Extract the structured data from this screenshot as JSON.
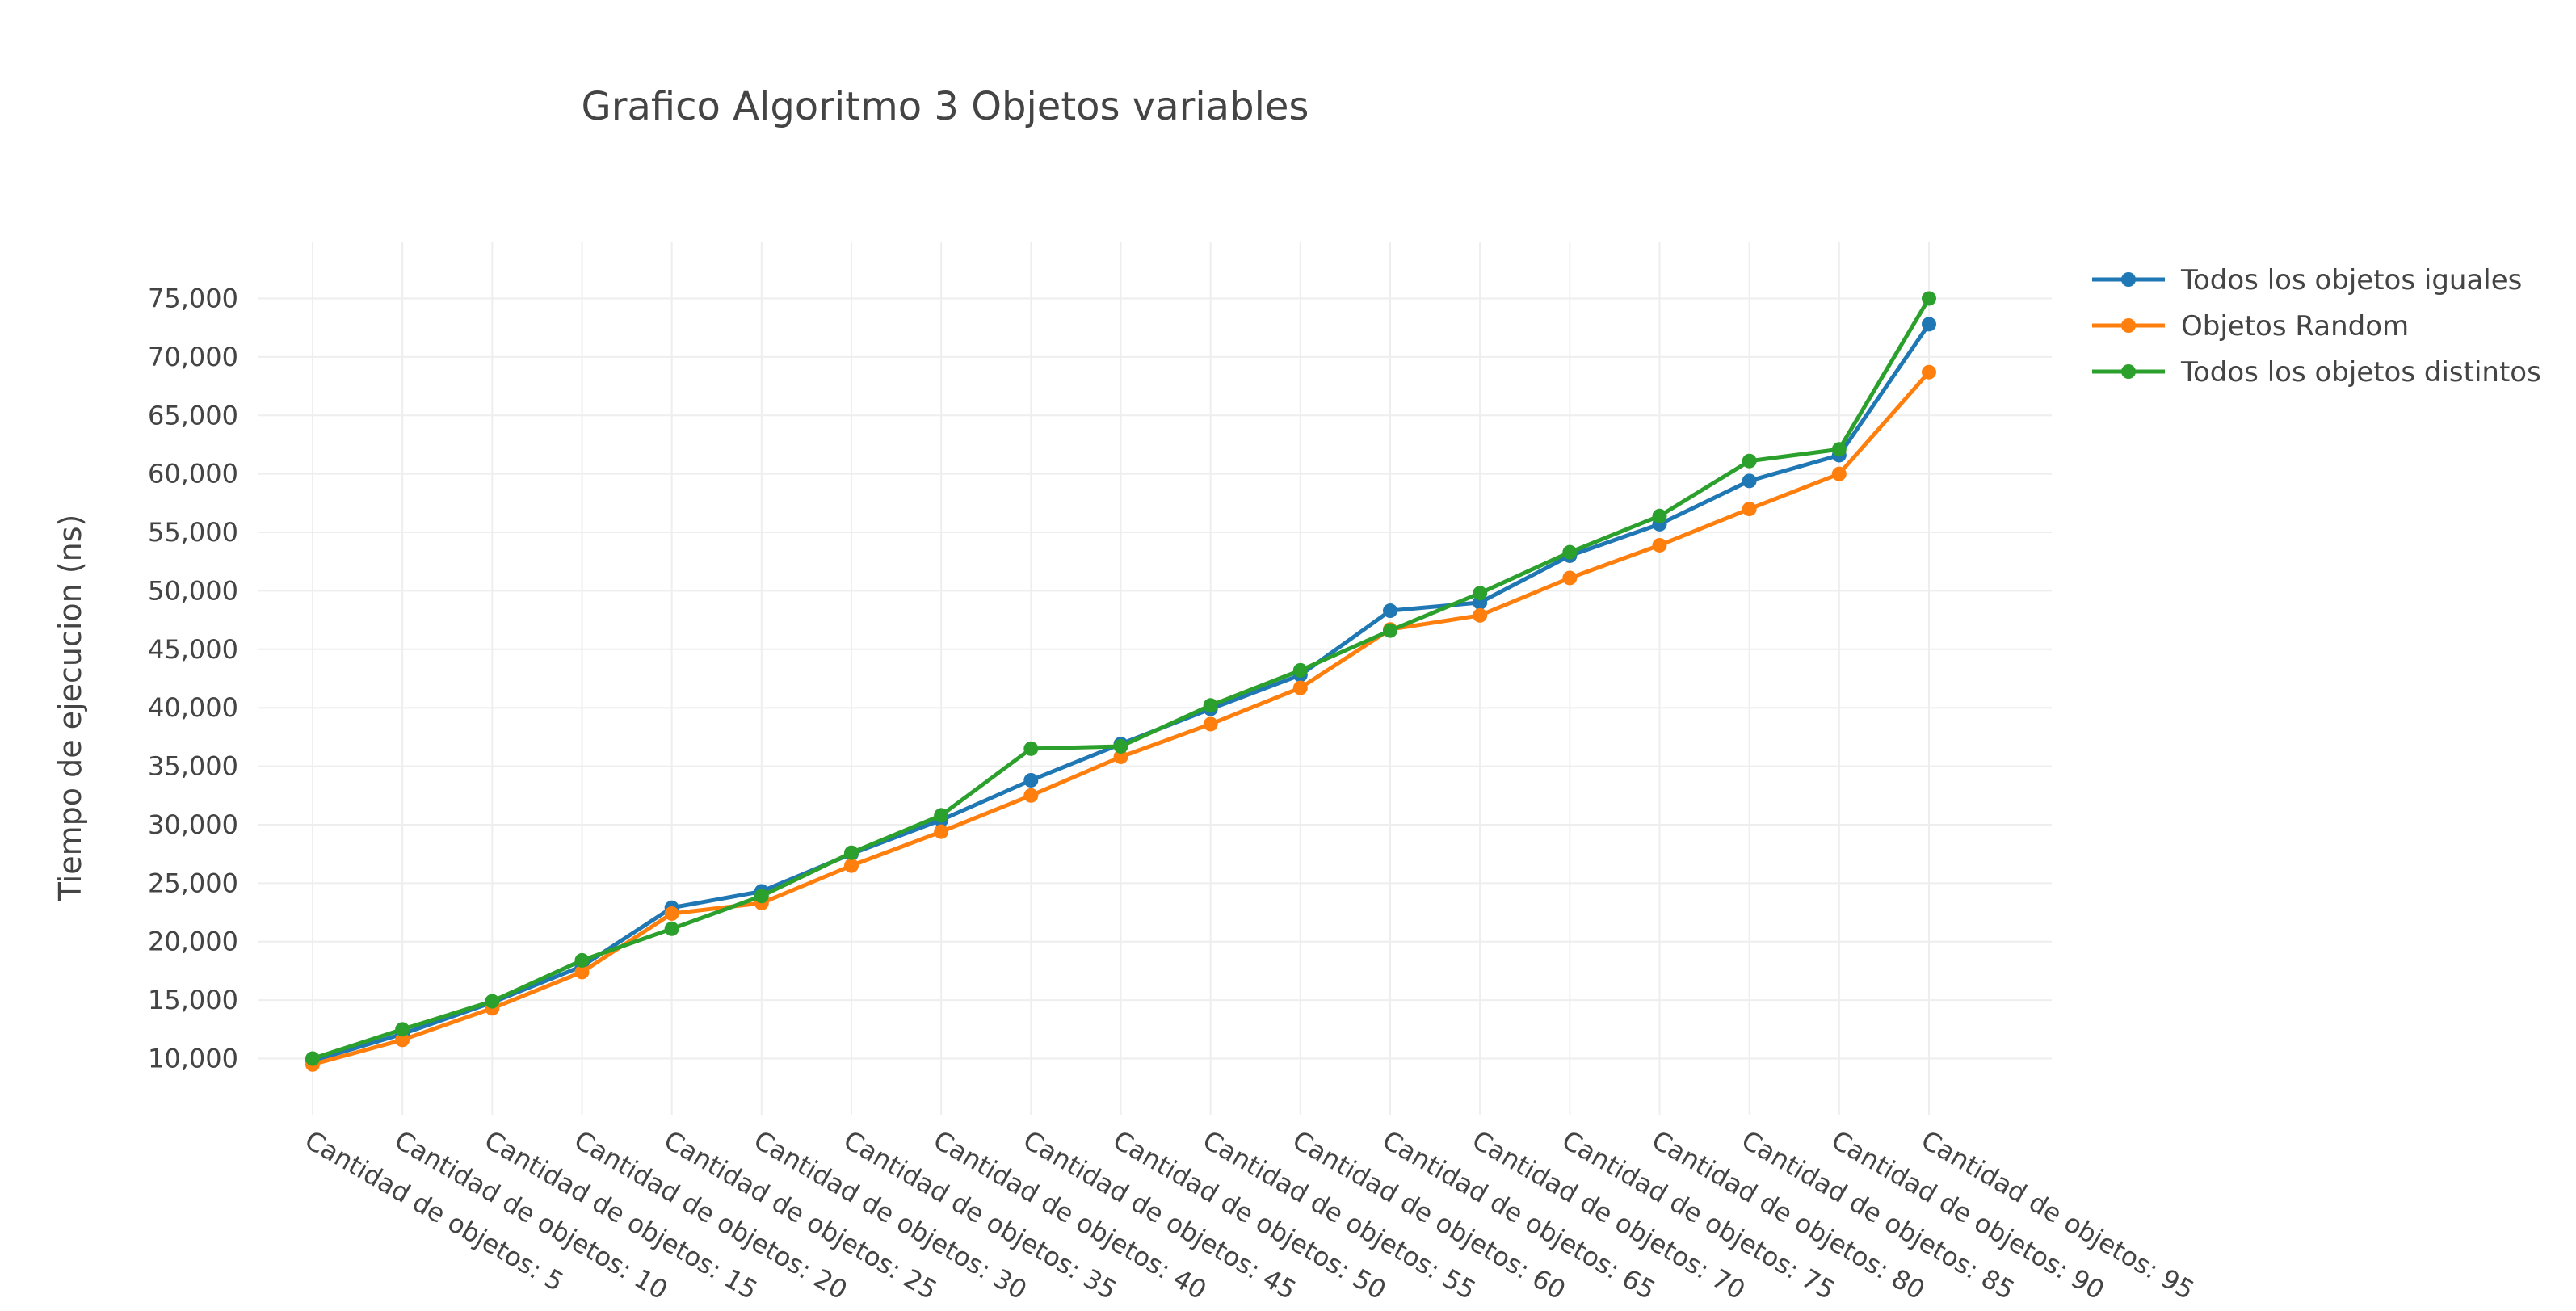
{
  "chart_data": {
    "type": "line",
    "title": "Grafico Algoritmo 3 Objetos variables",
    "xlabel": "",
    "ylabel": "Tiempo de ejecucion (ns)",
    "categories": [
      "Cantidad de objetos: 5",
      "Cantidad de objetos: 10",
      "Cantidad de objetos: 15",
      "Cantidad de objetos: 20",
      "Cantidad de objetos: 25",
      "Cantidad de objetos: 30",
      "Cantidad de objetos: 35",
      "Cantidad de objetos: 40",
      "Cantidad de objetos: 45",
      "Cantidad de objetos: 50",
      "Cantidad de objetos: 55",
      "Cantidad de objetos: 60",
      "Cantidad de objetos: 65",
      "Cantidad de objetos: 70",
      "Cantidad de objetos: 75",
      "Cantidad de objetos: 80",
      "Cantidad de objetos: 85",
      "Cantidad de objetos: 90",
      "Cantidad de objetos: 95"
    ],
    "yticks": [
      10000,
      15000,
      20000,
      25000,
      30000,
      35000,
      40000,
      45000,
      50000,
      55000,
      60000,
      65000,
      70000,
      75000
    ],
    "ytick_labels": [
      "10,000",
      "15,000",
      "20,000",
      "25,000",
      "30,000",
      "35,000",
      "40,000",
      "45,000",
      "50,000",
      "55,000",
      "60,000",
      "65,000",
      "70,000",
      "75,000"
    ],
    "ylim": [
      5200,
      79800
    ],
    "grid": true,
    "legend_position": "top-right",
    "series": [
      {
        "name": "Todos los objetos iguales",
        "color": "#1f77b4",
        "values": [
          9800,
          12100,
          14800,
          17900,
          22900,
          24300,
          27500,
          30400,
          33800,
          36900,
          39900,
          42800,
          48300,
          49000,
          53000,
          55700,
          59400,
          61600,
          72800
        ]
      },
      {
        "name": "Objetos Random",
        "color": "#ff7f0e",
        "values": [
          9500,
          11600,
          14300,
          17400,
          22400,
          23300,
          26500,
          29400,
          32500,
          35800,
          38600,
          41700,
          46700,
          47900,
          51100,
          53900,
          57000,
          60000,
          68700
        ]
      },
      {
        "name": "Todos los objetos distintos",
        "color": "#2ca02c",
        "values": [
          10000,
          12500,
          14900,
          18400,
          21100,
          23900,
          27600,
          30800,
          36500,
          36700,
          40200,
          43200,
          46600,
          49800,
          53300,
          56400,
          61100,
          62100,
          75000
        ]
      }
    ]
  }
}
